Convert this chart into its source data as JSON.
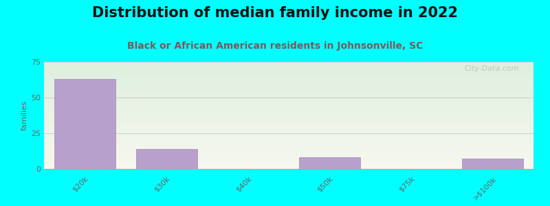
{
  "title": "Distribution of median family income in 2022",
  "subtitle": "Black or African American residents in Johnsonville, SC",
  "categories": [
    "$20k",
    "$30k",
    "$40k",
    "$50k",
    "$75k",
    ">$100k"
  ],
  "values": [
    63,
    14,
    0,
    8,
    0,
    7
  ],
  "bar_color": "#b8a0cc",
  "bar_edge_color": "#a08ab8",
  "ylim": [
    0,
    75
  ],
  "yticks": [
    0,
    25,
    50,
    75
  ],
  "ylabel": "families",
  "bg_color_topleft": "#ddeedd",
  "bg_color_bottomright": "#f8f8f0",
  "outer_background": "#00ffff",
  "title_fontsize": 15,
  "subtitle_fontsize": 10,
  "subtitle_color": "#7a5a5a",
  "watermark": "City-Data.com",
  "grid_color": "#cccccc"
}
